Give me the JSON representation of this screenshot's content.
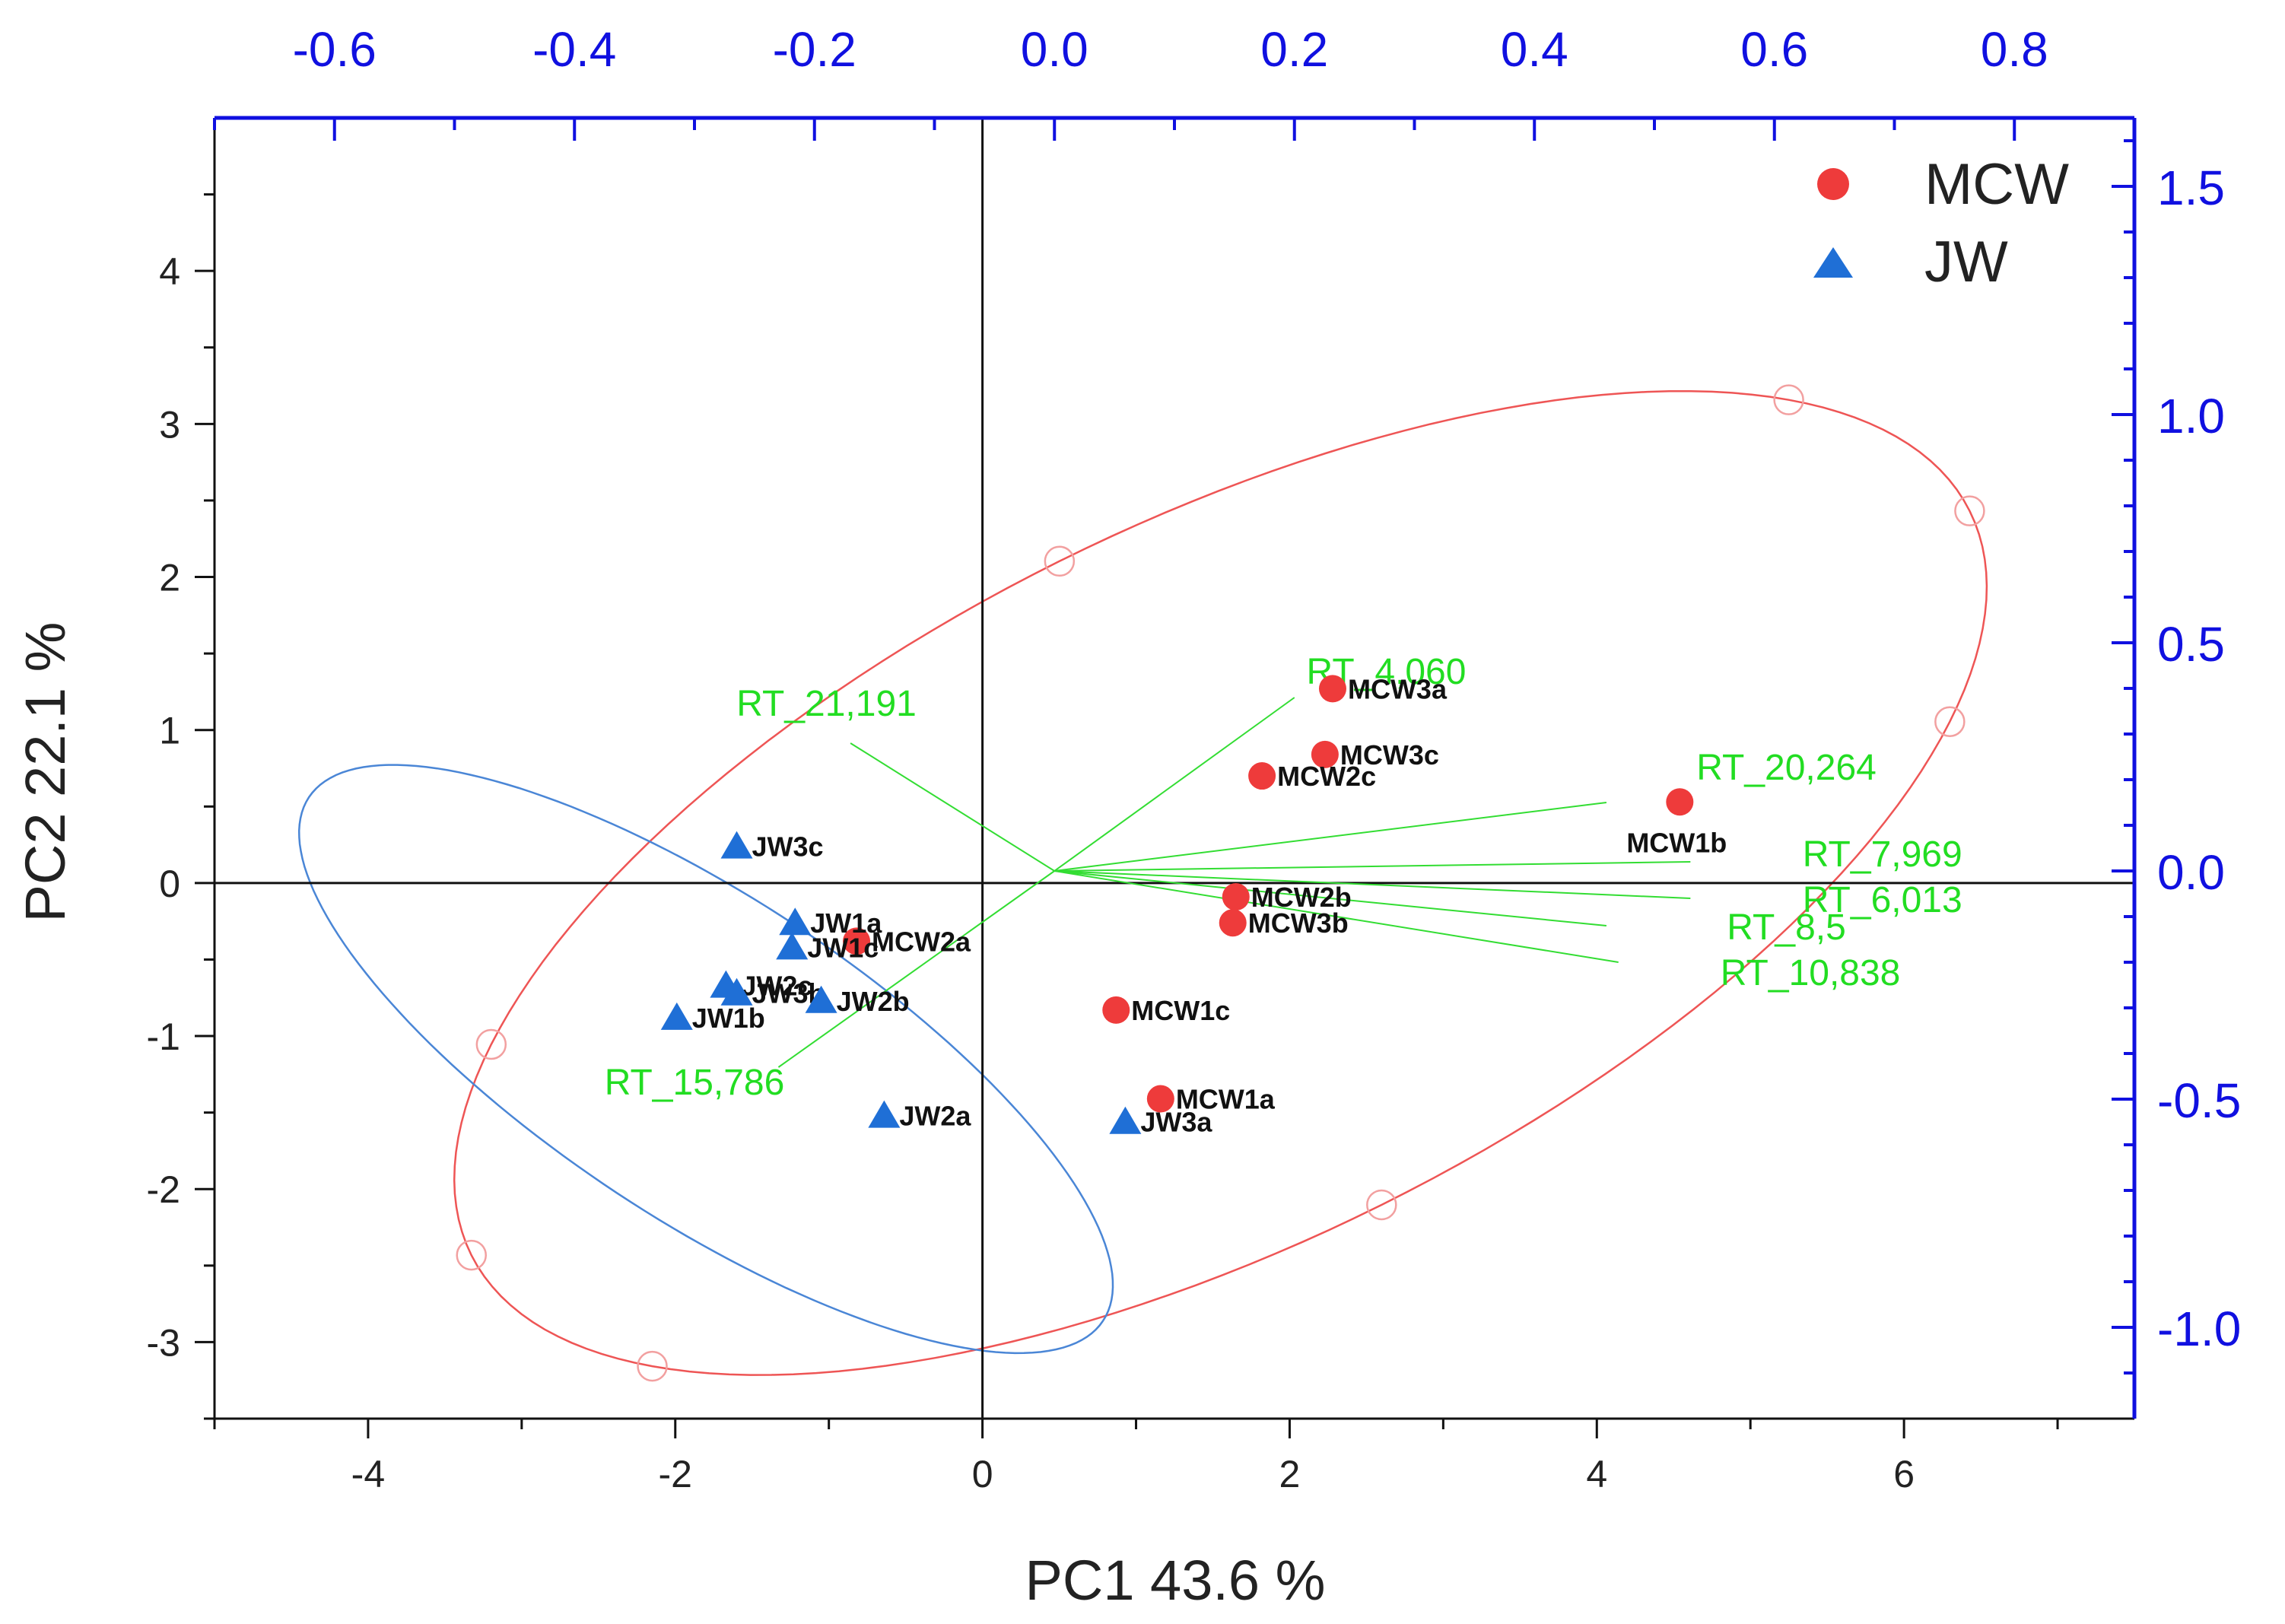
{
  "chart_data": {
    "type": "scatter",
    "subtype": "pca-biplot",
    "xlabel": "PC1 43.6 %",
    "ylabel": "PC2 22.1 %",
    "xlim": [
      -5,
      7.5
    ],
    "ylim": [
      -3.5,
      5.0
    ],
    "x_ticks": [
      "-4",
      "-2",
      "0",
      "2",
      "4",
      "6"
    ],
    "y_ticks": [
      "-3",
      "-2",
      "-1",
      "0",
      "1",
      "2",
      "3",
      "4"
    ],
    "secondary_x": {
      "lim": [
        -0.7,
        0.9
      ],
      "ticks": [
        "-0.6",
        "-0.4",
        "-0.2",
        "0.0",
        "0.2",
        "0.4",
        "0.6",
        "0.8"
      ],
      "color": "#1010e0"
    },
    "secondary_y": {
      "lim": [
        -1.2,
        1.65
      ],
      "ticks": [
        "-1.0",
        "-0.5",
        "0.0",
        "0.5",
        "1.0",
        "1.5"
      ],
      "color": "#1010e0"
    },
    "legend": {
      "placement": "top-right",
      "entries": [
        {
          "label": "MCW",
          "marker": "circle",
          "color": "#ee3b3b"
        },
        {
          "label": "JW",
          "marker": "triangle",
          "color": "#1f6fd6"
        }
      ]
    },
    "series": [
      {
        "name": "MCW",
        "marker": "circle",
        "color": "#ee3b3b",
        "points": [
          {
            "label": "MCW3a",
            "x": 2.28,
            "y": 1.27
          },
          {
            "label": "MCW3c",
            "x": 2.23,
            "y": 0.84
          },
          {
            "label": "MCW2c",
            "x": 1.82,
            "y": 0.7
          },
          {
            "label": "MCW1b",
            "x": 4.54,
            "y": 0.53
          },
          {
            "label": "MCW2b",
            "x": 1.65,
            "y": -0.09
          },
          {
            "label": "MCW3b",
            "x": 1.63,
            "y": -0.26
          },
          {
            "label": "MCW2a",
            "x": -0.82,
            "y": -0.38
          },
          {
            "label": "MCW1c",
            "x": 0.87,
            "y": -0.83
          },
          {
            "label": "MCW1a",
            "x": 1.16,
            "y": -1.41
          }
        ]
      },
      {
        "name": "JW",
        "marker": "triangle",
        "color": "#1f6fd6",
        "points": [
          {
            "label": "JW3c",
            "x": -1.6,
            "y": 0.24
          },
          {
            "label": "JW1a",
            "x": -1.22,
            "y": -0.26
          },
          {
            "label": "JW1c",
            "x": -1.24,
            "y": -0.42
          },
          {
            "label": "JW2c",
            "x": -1.67,
            "y": -0.67
          },
          {
            "label": "JW3b",
            "x": -1.6,
            "y": -0.72
          },
          {
            "label": "JW2b",
            "x": -1.05,
            "y": -0.77
          },
          {
            "label": "JW1b",
            "x": -1.99,
            "y": -0.88
          },
          {
            "label": "JW2a",
            "x": -0.64,
            "y": -1.52
          },
          {
            "label": "JW3a",
            "x": 0.93,
            "y": -1.56
          }
        ]
      }
    ],
    "loadings": [
      {
        "label": "RT_4,060",
        "x": 0.2,
        "y": 0.38
      },
      {
        "label": "RT_21,191",
        "x": -0.17,
        "y": 0.28
      },
      {
        "label": "RT_20,264",
        "x": 0.46,
        "y": 0.15
      },
      {
        "label": "RT_7,969",
        "x": 0.53,
        "y": 0.02
      },
      {
        "label": "RT_6,013",
        "x": 0.53,
        "y": -0.06
      },
      {
        "label": "RT_8,5",
        "x": 0.46,
        "y": -0.12
      },
      {
        "label": "RT_10,838",
        "x": 0.47,
        "y": -0.2
      },
      {
        "label": "RT_15,786",
        "x": -0.23,
        "y": -0.43
      }
    ],
    "confidence_ellipses": [
      {
        "group": "MCW",
        "color": "#ee5555",
        "center": [
          1.55,
          0.0
        ],
        "semi_major": 5.45,
        "semi_minor": 2.35,
        "angle_deg": 26.5
      },
      {
        "group": "JW",
        "color": "#4a86d6",
        "center": [
          -1.8,
          -1.15
        ],
        "semi_major": 3.1,
        "semi_minor": 1.05,
        "angle_deg": -33.5
      }
    ]
  }
}
